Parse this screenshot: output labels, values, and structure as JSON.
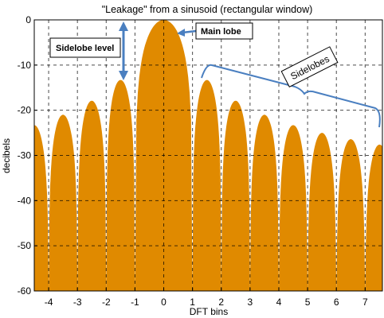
{
  "chart_data": {
    "type": "area",
    "title": "\"Leakage\" from a sinusoid (rectangular window)",
    "xlabel": "DFT bins",
    "ylabel": "decibels",
    "xlim": [
      -4.5,
      7.6
    ],
    "ylim": [
      -60,
      0
    ],
    "xticks": [
      -4,
      -3,
      -2,
      -1,
      0,
      1,
      2,
      3,
      4,
      5,
      6,
      7
    ],
    "yticks": [
      0,
      -10,
      -20,
      -30,
      -40,
      -50,
      -60
    ],
    "grid": true,
    "fill_color": "#E08A00",
    "series": [
      {
        "lobes": [
          {
            "center": -4.5,
            "peak": -23.3
          },
          {
            "center": -3.5,
            "peak": -21.0
          },
          {
            "center": -2.5,
            "peak": -17.9
          },
          {
            "center": -1.5,
            "peak": -13.3
          },
          {
            "center": 0.0,
            "peak": 0.0
          },
          {
            "center": 1.5,
            "peak": -13.3
          },
          {
            "center": 2.5,
            "peak": -17.9
          },
          {
            "center": 3.5,
            "peak": -21.0
          },
          {
            "center": 4.5,
            "peak": -23.3
          },
          {
            "center": 5.5,
            "peak": -25.0
          },
          {
            "center": 6.5,
            "peak": -26.4
          },
          {
            "center": 7.5,
            "peak": -27.6
          }
        ]
      }
    ],
    "annotations": {
      "main_lobe": "Main lobe",
      "sidelobe_level": "Sidelobe  level",
      "sidelobes": "Sidelobes"
    }
  }
}
